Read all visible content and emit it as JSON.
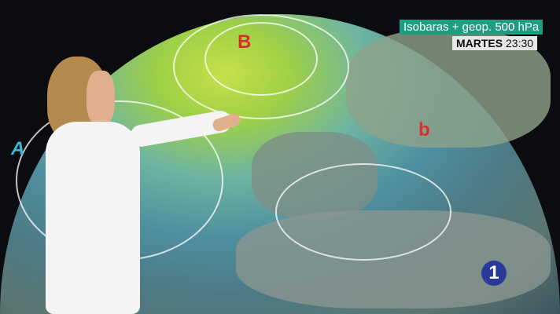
{
  "overlay": {
    "title": "Isobaras + geop. 500 hPa",
    "day": "MARTES",
    "time": "23:30"
  },
  "map": {
    "pressure_labels": [
      "B",
      "b",
      "A"
    ]
  },
  "logo": {
    "text": "1"
  },
  "colors": {
    "title_bg": "#1f9d82",
    "time_bg": "#e6e6e6",
    "low": "#d8302a",
    "high": "#3ab8d8"
  }
}
